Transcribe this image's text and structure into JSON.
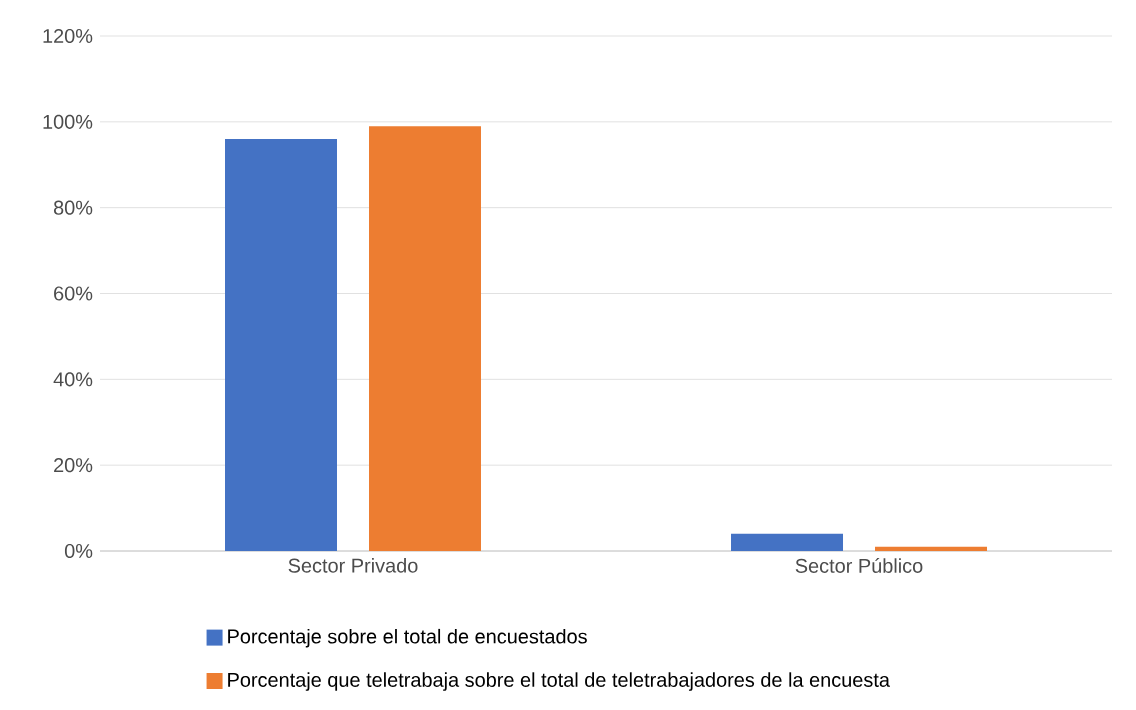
{
  "chart_data": {
    "type": "bar",
    "categories": [
      "Sector Privado",
      "Sector Público"
    ],
    "series": [
      {
        "name": "Porcentaje sobre el total de encuestados",
        "color": "#4472c4",
        "values": [
          96,
          4
        ]
      },
      {
        "name": "Porcentaje que teletrabaja sobre el total de teletrabajadores de la encuesta",
        "color": "#ed7d31",
        "values": [
          99,
          1
        ]
      }
    ],
    "ylim": [
      0,
      120
    ],
    "yticks": [
      {
        "value": 0,
        "label": "0%"
      },
      {
        "value": 20,
        "label": "20%"
      },
      {
        "value": 40,
        "label": "40%"
      },
      {
        "value": 60,
        "label": "60%"
      },
      {
        "value": 80,
        "label": "80%"
      },
      {
        "value": 100,
        "label": "100%"
      },
      {
        "value": 120,
        "label": "120%"
      }
    ],
    "grid": "y",
    "legend": "bottom"
  }
}
